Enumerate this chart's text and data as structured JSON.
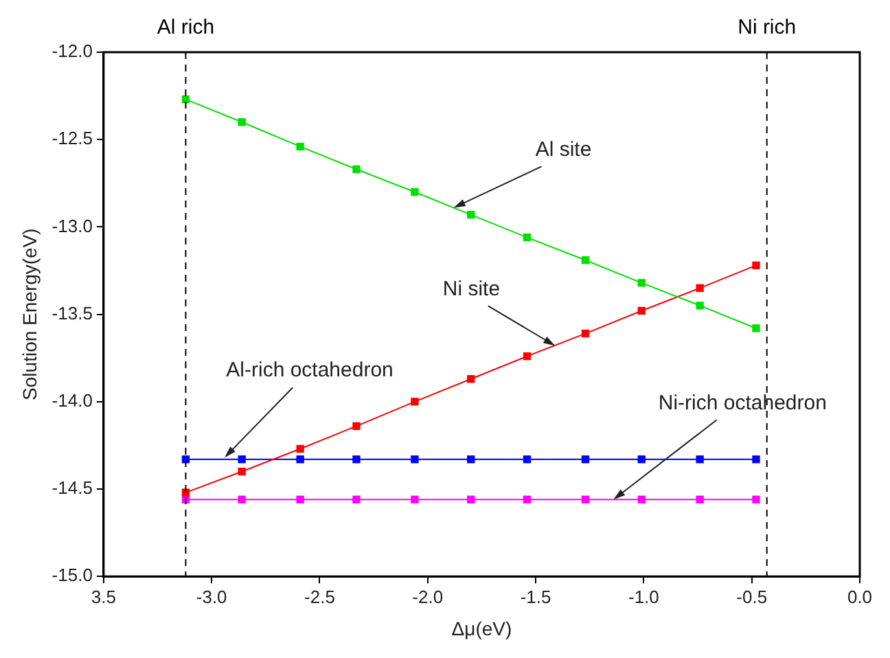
{
  "chart_data": {
    "type": "line",
    "xlabel": "Δμ(eV)",
    "ylabel": "Solution Energy(eV)",
    "xlim": [
      -3.5,
      0
    ],
    "xticks": [
      {
        "value": -3.5,
        "label": "3.5"
      },
      {
        "value": -3.0,
        "label": "-3.0"
      },
      {
        "value": -2.5,
        "label": "-2.5"
      },
      {
        "value": -2.0,
        "label": "-2.0"
      },
      {
        "value": -1.5,
        "label": "-1.5"
      },
      {
        "value": -1.0,
        "label": "-1.0"
      },
      {
        "value": -0.5,
        "label": "-0.5"
      },
      {
        "value": 0,
        "label": "0.0"
      }
    ],
    "ylim": [
      -15,
      -12
    ],
    "yticks": [
      {
        "value": -15,
        "label": "-15.0"
      },
      {
        "value": -14.5,
        "label": "-14.5"
      },
      {
        "value": -14,
        "label": "-14.0"
      },
      {
        "value": -13.5,
        "label": "-13.5"
      },
      {
        "value": -13,
        "label": "-13.0"
      },
      {
        "value": -12.5,
        "label": "-12.5"
      },
      {
        "value": -12,
        "label": "-12.0"
      }
    ],
    "x": [
      -3.12,
      -2.86,
      -2.59,
      -2.33,
      -2.06,
      -1.8,
      -1.54,
      -1.27,
      -1.01,
      -0.74,
      -0.48
    ],
    "series": [
      {
        "color": "#00e000",
        "values": [
          -12.27,
          -12.4,
          -12.54,
          -12.67,
          -12.8,
          -12.93,
          -13.06,
          -13.19,
          -13.32,
          -13.45,
          -13.58
        ]
      },
      {
        "color": "#ff0000",
        "values": [
          -14.52,
          -14.4,
          -14.27,
          -14.14,
          -14.0,
          -13.87,
          -13.74,
          -13.61,
          -13.48,
          -13.35,
          -13.22
        ]
      },
      {
        "color": "#0000ff",
        "values": [
          -14.33,
          -14.33,
          -14.33,
          -14.33,
          -14.33,
          -14.33,
          -14.33,
          -14.33,
          -14.33,
          -14.33,
          -14.33
        ]
      },
      {
        "color": "#ff00ff",
        "values": [
          -14.56,
          -14.56,
          -14.56,
          -14.56,
          -14.56,
          -14.56,
          -14.56,
          -14.56,
          -14.56,
          -14.56,
          -14.56
        ]
      }
    ],
    "ref_lines": [
      {
        "axis": "x",
        "value": -3.12,
        "label": "Al rich",
        "color": "#000000",
        "line_style": "dashed"
      },
      {
        "axis": "x",
        "value": -0.43,
        "label": "Ni rich",
        "color": "#000000",
        "line_style": "dashed"
      }
    ],
    "annotations": [
      {
        "text": "Al site",
        "x": -1.88,
        "y": -12.89
      },
      {
        "text": "Ni site",
        "x": -1.41,
        "y": -13.68
      },
      {
        "text": "Al-rich octahedron",
        "x": -2.94,
        "y": -14.32
      },
      {
        "text": "Ni-rich octahedron",
        "x": -1.14,
        "y": -14.56
      }
    ],
    "grid": false,
    "legend": false,
    "marker": "square",
    "line_style": "solid"
  }
}
